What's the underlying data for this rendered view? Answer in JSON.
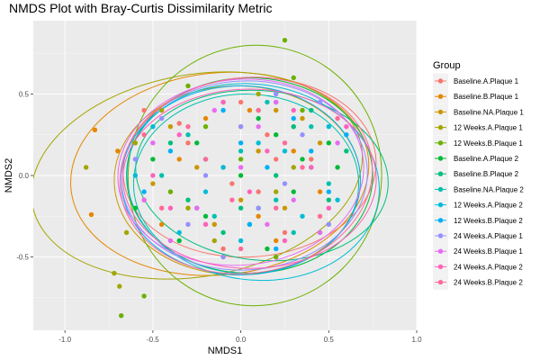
{
  "chart_data": {
    "type": "scatter",
    "title": "NMDS Plot with Bray-Curtis Dissimilarity Metric",
    "xlabel": "NMDS1",
    "ylabel": "NMDS2",
    "xlim": [
      -1.18,
      1.0
    ],
    "ylim": [
      -0.95,
      0.95
    ],
    "x_ticks": [
      -1.0,
      -0.5,
      0.0,
      0.5,
      1.0
    ],
    "x_tick_labels": [
      "-1.0",
      "-0.5",
      "0.0",
      "0.5",
      "1.0"
    ],
    "y_ticks": [
      -0.5,
      0.0,
      0.5
    ],
    "y_tick_labels": [
      "-0.5",
      "0.0",
      "0.5"
    ],
    "grid": true,
    "legend_position": "right",
    "legend_title": "Group",
    "panel_background": "#ebebeb",
    "series": [
      {
        "name": "Baseline.A.Plaque 1",
        "color": "#F8766D",
        "ellipse": {
          "cx": 0.05,
          "cy": 0.05,
          "rx": 0.72,
          "ry": 0.55,
          "angle": -4
        },
        "points": [
          [
            -0.55,
            0.4
          ],
          [
            -0.3,
            0.2
          ],
          [
            0.1,
            -0.1
          ],
          [
            0.3,
            0.3
          ],
          [
            0.5,
            -0.2
          ],
          [
            -0.2,
            -0.3
          ],
          [
            0.2,
            0.1
          ],
          [
            -0.4,
            -0.1
          ],
          [
            0.0,
            0.45
          ],
          [
            0.4,
            0.1
          ],
          [
            -0.1,
            -0.45
          ],
          [
            0.25,
            -0.35
          ],
          [
            -0.35,
            0.32
          ],
          [
            0.15,
            0.25
          ],
          [
            -0.05,
            -0.05
          ]
        ]
      },
      {
        "name": "Baseline.B.Plaque 1",
        "color": "#E58700",
        "ellipse": {
          "cx": -0.12,
          "cy": 0.01,
          "rx": 0.85,
          "ry": 0.62,
          "angle": -6
        },
        "points": [
          [
            -0.83,
            0.28
          ],
          [
            -0.85,
            -0.24
          ],
          [
            -0.7,
            0.15
          ],
          [
            -0.45,
            -0.3
          ],
          [
            -0.2,
            0.35
          ],
          [
            0.1,
            -0.25
          ],
          [
            0.3,
            0.15
          ],
          [
            -0.1,
            0.05
          ],
          [
            0.45,
            -0.1
          ],
          [
            -0.35,
            0.1
          ],
          [
            0.05,
            0.4
          ],
          [
            -0.55,
            -0.15
          ],
          [
            0.2,
            -0.4
          ]
        ]
      },
      {
        "name": "Baseline.NA.Plaque 1",
        "color": "#C99800",
        "ellipse": {
          "cx": -0.02,
          "cy": -0.03,
          "rx": 0.7,
          "ry": 0.58,
          "angle": 0
        },
        "points": [
          [
            -0.4,
            0.3
          ],
          [
            0.25,
            -0.2
          ],
          [
            -0.15,
            -0.3
          ],
          [
            0.35,
            0.35
          ],
          [
            -0.25,
            0.05
          ],
          [
            0.1,
            0.15
          ],
          [
            0.45,
            0.2
          ],
          [
            -0.5,
            -0.05
          ],
          [
            0.0,
            -0.15
          ],
          [
            0.2,
            0.4
          ]
        ]
      },
      {
        "name": "12 Weeks.A.Plaque 1",
        "color": "#A3A500",
        "ellipse": {
          "cx": -0.25,
          "cy": 0.0,
          "rx": 0.95,
          "ry": 0.62,
          "angle": -10
        },
        "points": [
          [
            -0.69,
            -0.68
          ],
          [
            -0.72,
            -0.6
          ],
          [
            -0.88,
            0.05
          ],
          [
            -0.6,
            0.2
          ],
          [
            -0.3,
            -0.2
          ],
          [
            0.0,
            0.3
          ],
          [
            0.2,
            -0.1
          ],
          [
            -0.45,
            0.4
          ],
          [
            -0.15,
            -0.4
          ],
          [
            0.3,
            0.05
          ],
          [
            -0.65,
            -0.35
          ],
          [
            0.1,
            0.5
          ]
        ]
      },
      {
        "name": "12 Weeks.B.Plaque 1",
        "color": "#6BB100",
        "ellipse": {
          "cx": 0.08,
          "cy": 0.0,
          "rx": 0.72,
          "ry": 0.8,
          "angle": 12
        },
        "points": [
          [
            0.25,
            0.83
          ],
          [
            -0.55,
            -0.74
          ],
          [
            -0.68,
            -0.86
          ],
          [
            -0.2,
            0.3
          ],
          [
            0.1,
            -0.2
          ],
          [
            0.35,
            0.4
          ],
          [
            -0.4,
            -0.1
          ],
          [
            0.5,
            -0.3
          ],
          [
            0.0,
            0.1
          ],
          [
            -0.1,
            -0.5
          ],
          [
            0.2,
            -0.5
          ],
          [
            0.3,
            0.6
          ],
          [
            -0.3,
            0.55
          ]
        ]
      },
      {
        "name": "Baseline.A.Plaque 2",
        "color": "#00BA38",
        "ellipse": {
          "cx": 0.05,
          "cy": 0.0,
          "rx": 0.7,
          "ry": 0.6,
          "angle": 0
        },
        "points": [
          [
            -0.5,
            0.1
          ],
          [
            -0.2,
            -0.25
          ],
          [
            0.1,
            0.35
          ],
          [
            0.3,
            -0.1
          ],
          [
            0.5,
            0.2
          ],
          [
            -0.35,
            -0.4
          ],
          [
            0.0,
            0.0
          ],
          [
            0.2,
            0.25
          ],
          [
            -0.1,
            0.45
          ],
          [
            0.45,
            -0.35
          ],
          [
            -0.6,
            -0.2
          ],
          [
            0.15,
            -0.45
          ],
          [
            0.35,
            0.1
          ],
          [
            -0.25,
            0.2
          ],
          [
            0.05,
            -0.3
          ],
          [
            0.55,
            0.05
          ]
        ]
      },
      {
        "name": "Baseline.B.Plaque 2",
        "color": "#00BF7D",
        "ellipse": {
          "cx": 0.12,
          "cy": 0.0,
          "rx": 0.72,
          "ry": 0.52,
          "angle": 6
        },
        "points": [
          [
            -0.4,
            0.2
          ],
          [
            0.0,
            -0.2
          ],
          [
            0.3,
            0.3
          ],
          [
            0.5,
            -0.15
          ],
          [
            -0.2,
            0.1
          ],
          [
            0.2,
            0.0
          ],
          [
            0.4,
            0.4
          ],
          [
            -0.1,
            -0.35
          ],
          [
            0.6,
            0.15
          ],
          [
            0.1,
            0.4
          ],
          [
            -0.3,
            -0.15
          ]
        ]
      },
      {
        "name": "Baseline.NA.Plaque 2",
        "color": "#00C0AF",
        "ellipse": {
          "cx": 0.03,
          "cy": -0.05,
          "rx": 0.64,
          "ry": 0.55,
          "angle": 0
        },
        "points": [
          [
            -0.3,
            0.25
          ],
          [
            0.2,
            -0.15
          ],
          [
            0.4,
            0.3
          ],
          [
            -0.15,
            -0.25
          ],
          [
            0.0,
            0.15
          ],
          [
            0.3,
            -0.35
          ],
          [
            -0.45,
            0.0
          ],
          [
            0.15,
            0.45
          ],
          [
            0.5,
            -0.05
          ]
        ]
      },
      {
        "name": "12 Weeks.A.Plaque 2",
        "color": "#00BCD8",
        "ellipse": {
          "cx": 0.07,
          "cy": -0.04,
          "rx": 0.72,
          "ry": 0.6,
          "angle": 8
        },
        "points": [
          [
            -0.5,
            0.3
          ],
          [
            -0.2,
            -0.1
          ],
          [
            0.1,
            0.2
          ],
          [
            0.35,
            -0.25
          ],
          [
            0.5,
            0.3
          ],
          [
            -0.35,
            -0.35
          ],
          [
            0.2,
            0.45
          ],
          [
            0.0,
            -0.4
          ],
          [
            -0.1,
            0.05
          ],
          [
            0.4,
            0.05
          ],
          [
            0.55,
            -0.15
          ],
          [
            -0.6,
            0.0
          ],
          [
            0.25,
            0.15
          ]
        ]
      },
      {
        "name": "12 Weeks.B.Plaque 2",
        "color": "#00B0F6",
        "ellipse": {
          "cx": 0.0,
          "cy": -0.03,
          "rx": 0.68,
          "ry": 0.58,
          "angle": 0
        },
        "points": [
          [
            -0.4,
            0.15
          ],
          [
            0.05,
            -0.3
          ],
          [
            0.3,
            0.35
          ],
          [
            0.5,
            -0.1
          ],
          [
            -0.25,
            -0.2
          ],
          [
            0.15,
            0.05
          ],
          [
            -0.1,
            0.4
          ],
          [
            0.4,
            0.15
          ],
          [
            -0.55,
            -0.1
          ],
          [
            0.2,
            -0.45
          ],
          [
            0.6,
            0.25
          ],
          [
            0.0,
            0.2
          ]
        ]
      },
      {
        "name": "24 Weeks.A.Plaque 1",
        "color": "#9590FF",
        "ellipse": {
          "cx": 0.02,
          "cy": 0.0,
          "rx": 0.7,
          "ry": 0.58,
          "angle": -3
        },
        "points": [
          [
            -0.45,
            0.35
          ],
          [
            -0.2,
            0.0
          ],
          [
            0.1,
            -0.2
          ],
          [
            0.35,
            0.25
          ],
          [
            0.5,
            -0.3
          ],
          [
            -0.3,
            -0.3
          ],
          [
            0.0,
            0.3
          ],
          [
            0.25,
            -0.05
          ],
          [
            -0.6,
            0.1
          ],
          [
            0.45,
            0.45
          ],
          [
            -0.1,
            -0.5
          ],
          [
            0.2,
            0.5
          ]
        ]
      },
      {
        "name": "24 Weeks.B.Plaque 1",
        "color": "#E76BF3",
        "ellipse": {
          "cx": 0.0,
          "cy": 0.02,
          "rx": 0.7,
          "ry": 0.57,
          "angle": -5
        },
        "points": [
          [
            -0.5,
            0.2
          ],
          [
            -0.25,
            -0.2
          ],
          [
            0.1,
            0.3
          ],
          [
            0.3,
            -0.15
          ],
          [
            0.55,
            0.2
          ],
          [
            -0.4,
            -0.4
          ],
          [
            0.0,
            0.05
          ],
          [
            0.2,
            0.45
          ],
          [
            -0.15,
            0.4
          ],
          [
            0.45,
            -0.35
          ],
          [
            -0.55,
            -0.15
          ],
          [
            0.15,
            -0.3
          ]
        ]
      },
      {
        "name": "24 Weeks.A.Plaque 2",
        "color": "#FF62BC",
        "ellipse": {
          "cx": 0.05,
          "cy": -0.02,
          "rx": 0.72,
          "ry": 0.55,
          "angle": 0
        },
        "points": [
          [
            -0.35,
            0.25
          ],
          [
            0.05,
            -0.1
          ],
          [
            0.3,
            0.4
          ],
          [
            0.5,
            -0.2
          ],
          [
            -0.2,
            -0.3
          ],
          [
            0.15,
            0.15
          ],
          [
            -0.5,
            0.0
          ],
          [
            0.4,
            0.05
          ],
          [
            0.6,
            0.3
          ],
          [
            -0.1,
            0.45
          ],
          [
            0.25,
            -0.4
          ],
          [
            -0.4,
            -0.2
          ]
        ]
      },
      {
        "name": "24 Weeks.B.Plaque 2",
        "color": "#FF6A98",
        "ellipse": {
          "cx": 0.03,
          "cy": 0.0,
          "rx": 0.72,
          "ry": 0.6,
          "angle": -7
        },
        "points": [
          [
            -0.3,
            0.3
          ],
          [
            -0.05,
            -0.15
          ],
          [
            0.25,
            0.2
          ],
          [
            0.45,
            -0.25
          ],
          [
            -0.45,
            -0.2
          ],
          [
            0.1,
            0.4
          ],
          [
            0.35,
            0.05
          ],
          [
            -0.2,
            0.1
          ],
          [
            0.55,
            0.35
          ],
          [
            0.0,
            -0.45
          ],
          [
            -0.55,
            0.25
          ],
          [
            0.2,
            -0.2
          ]
        ]
      }
    ]
  }
}
